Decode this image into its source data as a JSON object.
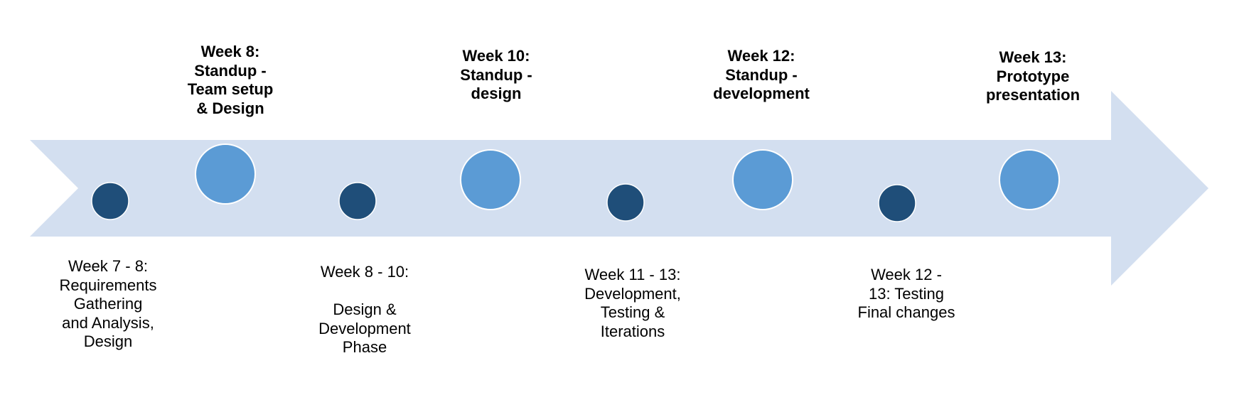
{
  "colors": {
    "arrow_fill": "#d3dff0",
    "major_milestone": "#5b9bd5",
    "major_milestone_stroke": "#ffffff",
    "minor_milestone": "#1f4e79"
  },
  "milestones": [
    {
      "kind": "minor",
      "label": "Week  7 - 8:\nRequirements\nGathering\nand Analysis,\nDesign"
    },
    {
      "kind": "major",
      "label": "Week 8:\nStandup -\nTeam setup\n& Design"
    },
    {
      "kind": "minor",
      "label": "Week 8 - 10:\n\nDesign &\nDevelopment\nPhase"
    },
    {
      "kind": "major",
      "label": "Week 10:\nStandup -\ndesign"
    },
    {
      "kind": "minor",
      "label": "Week 11 - 13:\nDevelopment,\nTesting &\nIterations"
    },
    {
      "kind": "major",
      "label": "Week 12:\nStandup -\ndevelopment"
    },
    {
      "kind": "minor",
      "label": "Week 12 -\n13: Testing\nFinal changes"
    },
    {
      "kind": "major",
      "label": "Week 13:\nPrototype\npresentation"
    }
  ]
}
